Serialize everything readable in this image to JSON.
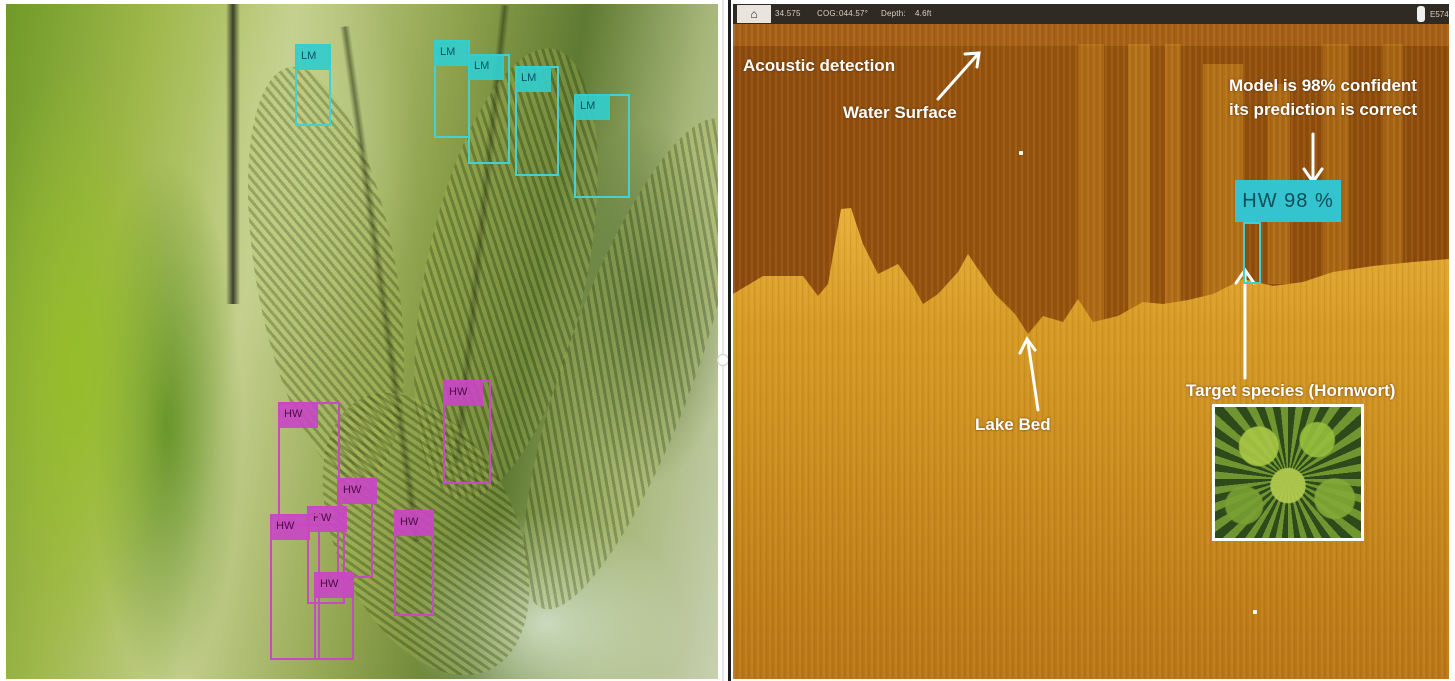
{
  "left_panel": {
    "detections": {
      "lm": [
        "LM",
        "LM",
        "LM",
        "LM",
        "LM"
      ],
      "hw": [
        "HW",
        "HW",
        "HW",
        "HW",
        "HW",
        "HW",
        "HW"
      ]
    }
  },
  "sonar": {
    "header": {
      "logo": "⌂",
      "readout_1": "34.575",
      "readout_2": "COG:",
      "readout_3": "044.57°",
      "readout_4": "Depth:",
      "readout_5": "4.6ft",
      "right_code": "E574"
    },
    "annotations": {
      "acoustic_detection": "Acoustic detection",
      "water_surface": "Water Surface",
      "confidence_line_1": "Model is 98% confident",
      "confidence_line_2": "its prediction is correct",
      "lake_bed": "Lake Bed",
      "target_species": "Target species (Hornwort)"
    },
    "prediction_label": "HW 98 %"
  },
  "colors": {
    "lm_box": "#45d0d2",
    "hw_box": "#c54cbe",
    "sonar_background": "#8f4e0d",
    "sonar_bed": "#d49a25",
    "prediction_label": "#34c4cf"
  }
}
